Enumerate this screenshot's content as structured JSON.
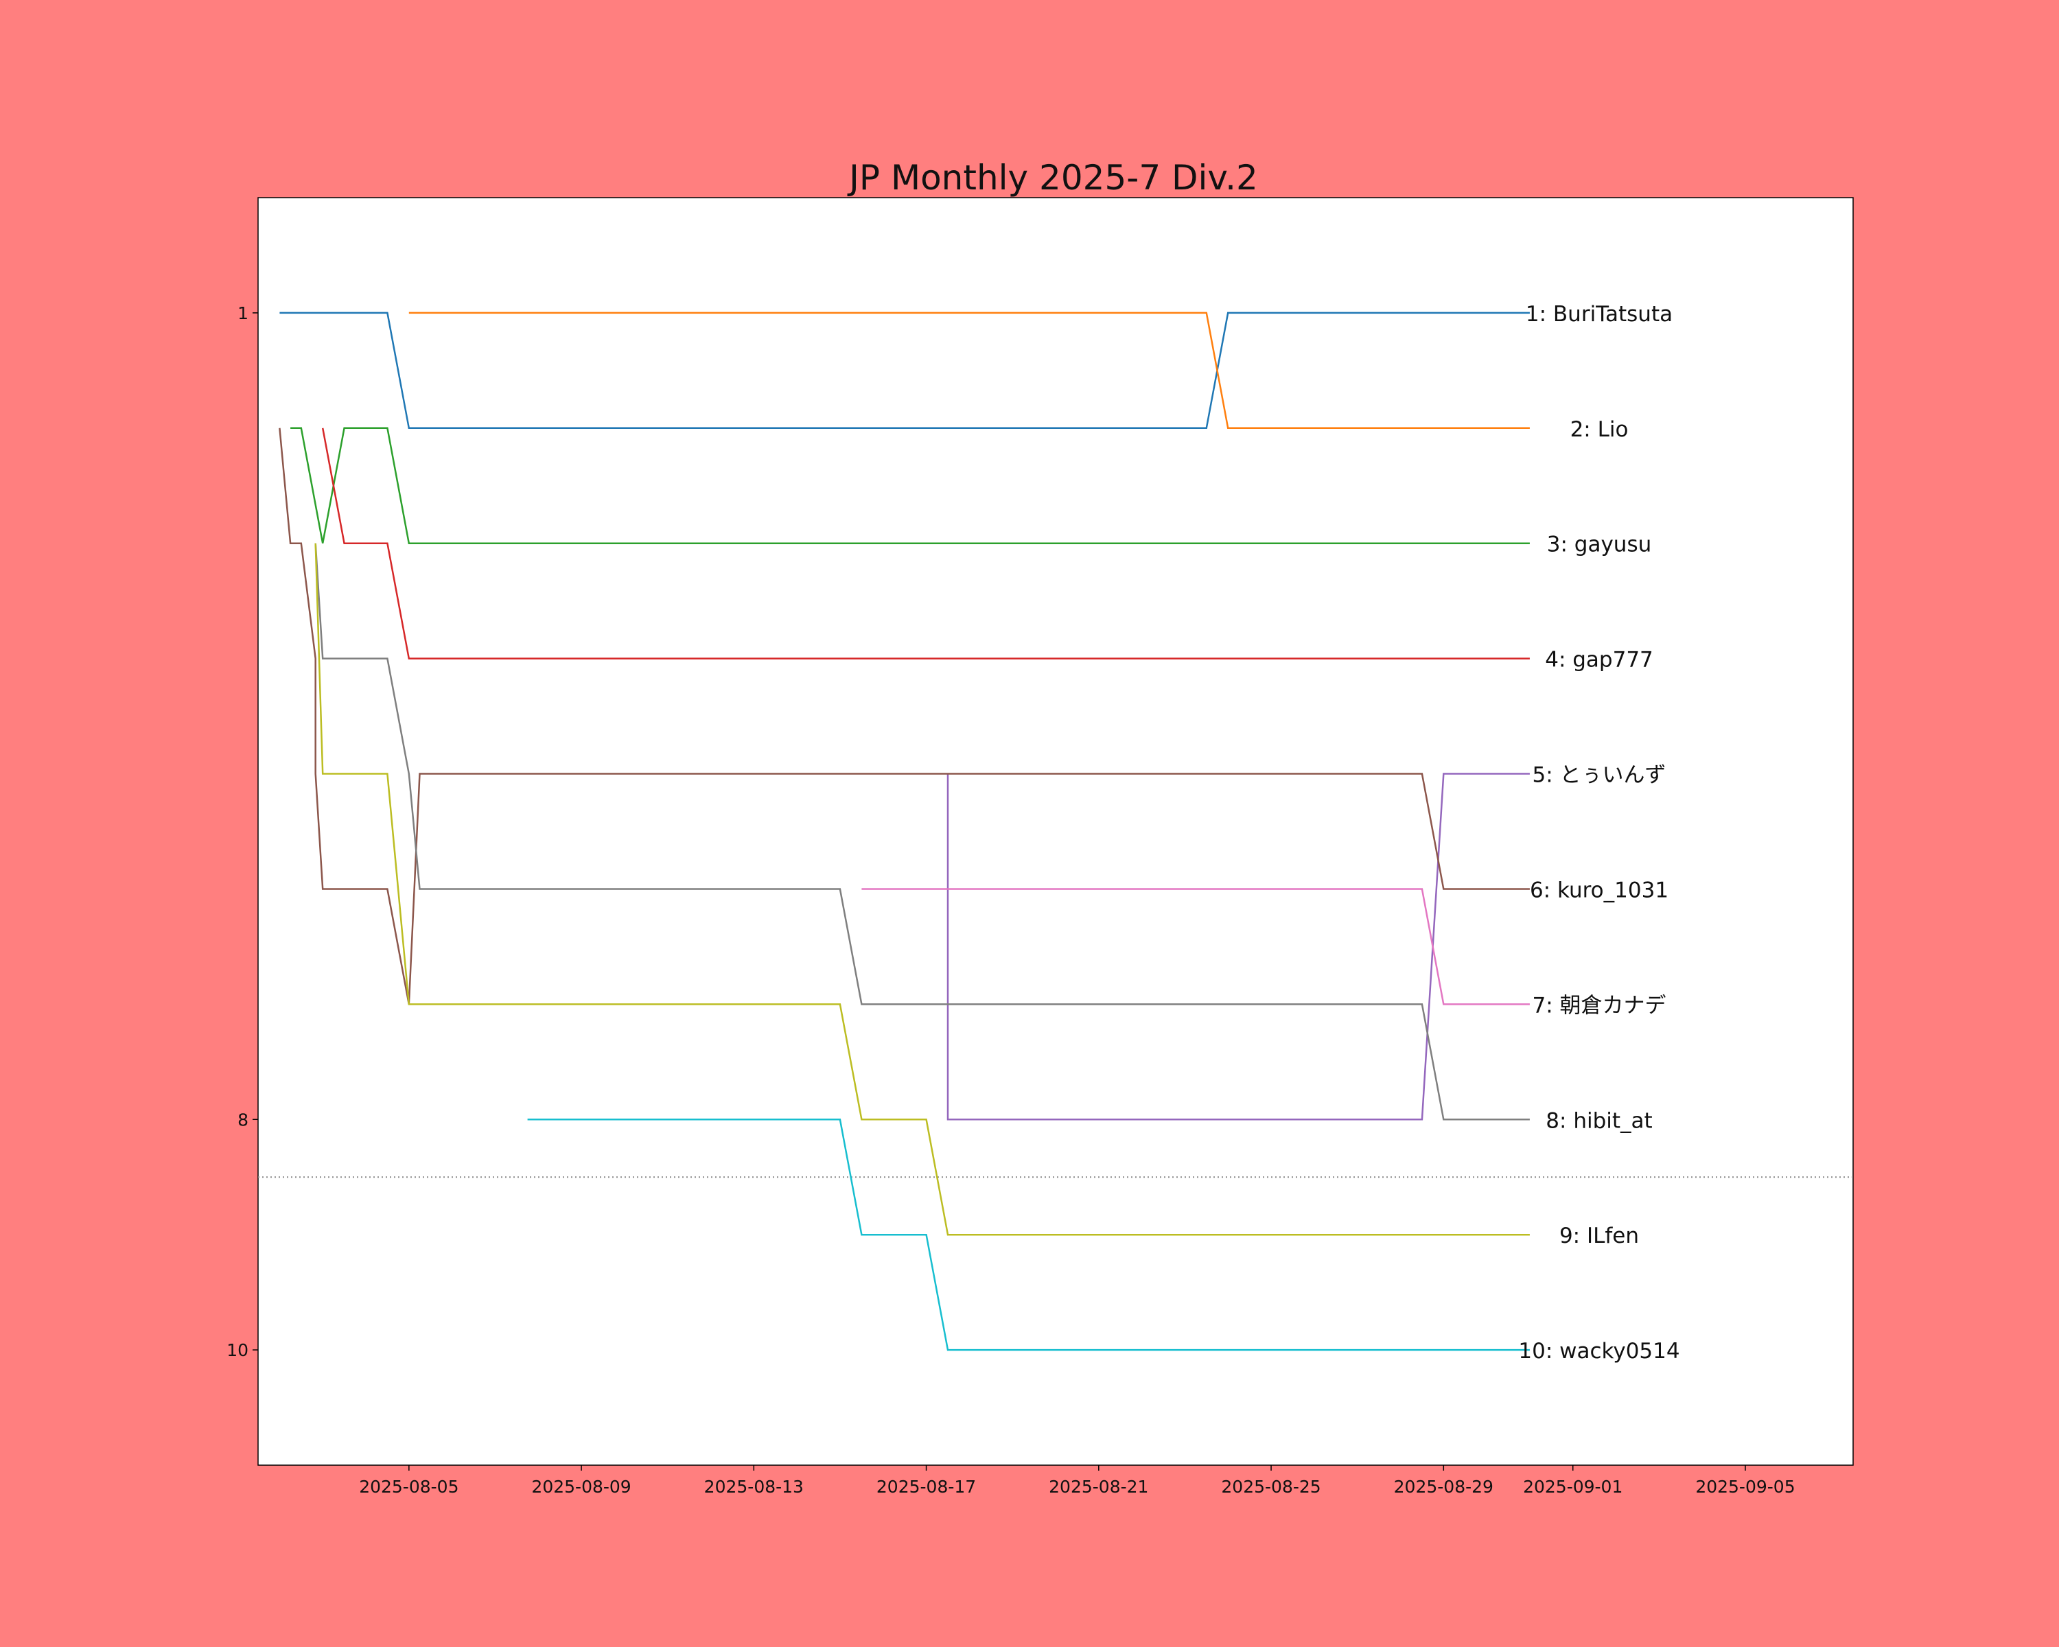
{
  "colors": {
    "background": "#ff7f7f",
    "plot": "#ffffff"
  },
  "chart_data": {
    "type": "line",
    "title": "JP Monthly 2025-7 Div.2",
    "xlabel": "",
    "ylabel": "",
    "x_ticks": [
      "2025-08-05",
      "2025-08-09",
      "2025-08-13",
      "2025-08-17",
      "2025-08-21",
      "2025-08-25",
      "2025-08-29",
      "2025-09-01",
      "2025-09-05"
    ],
    "y_ticks": [
      1,
      8,
      10
    ],
    "xlim": [
      "2025-08-01 12:00",
      "2025-09-07 12:00"
    ],
    "ylim": [
      11,
      0
    ],
    "cutoff_line": 8.5,
    "grid": false,
    "legend": "none (names labelled at line ends)",
    "series": [
      {
        "name": "1: BuriTatsuta",
        "color": "#1f77b4",
        "points": [
          [
            "2025-08-02 00:00",
            1
          ],
          [
            "2025-08-04 12:00",
            1
          ],
          [
            "2025-08-05 00:00",
            2
          ],
          [
            "2025-08-23 12:00",
            2
          ],
          [
            "2025-08-24 00:00",
            1
          ],
          [
            "2025-08-31 00:00",
            1
          ]
        ]
      },
      {
        "name": "2: Lio",
        "color": "#ff7f0e",
        "points": [
          [
            "2025-08-05 00:00",
            1
          ],
          [
            "2025-08-23 12:00",
            1
          ],
          [
            "2025-08-24 00:00",
            2
          ],
          [
            "2025-08-31 00:00",
            2
          ]
        ]
      },
      {
        "name": "3: gayusu",
        "color": "#2ca02c",
        "points": [
          [
            "2025-08-02 06:00",
            2
          ],
          [
            "2025-08-02 12:00",
            2
          ],
          [
            "2025-08-03 00:00",
            3
          ],
          [
            "2025-08-03 12:00",
            2
          ],
          [
            "2025-08-04 12:00",
            2
          ],
          [
            "2025-08-05 00:00",
            3
          ],
          [
            "2025-08-31 00:00",
            3
          ]
        ]
      },
      {
        "name": "4: gap777",
        "color": "#d62728",
        "points": [
          [
            "2025-08-03 00:00",
            2
          ],
          [
            "2025-08-03 12:00",
            3
          ],
          [
            "2025-08-04 12:00",
            3
          ],
          [
            "2025-08-05 00:00",
            4
          ],
          [
            "2025-08-31 00:00",
            4
          ]
        ]
      },
      {
        "name": "5: とぅいんず",
        "color": "#9467bd",
        "points": [
          [
            "2025-08-17 12:00",
            5
          ],
          [
            "2025-08-17 12:00",
            8
          ],
          [
            "2025-08-28 12:00",
            8
          ],
          [
            "2025-08-29 00:00",
            5
          ],
          [
            "2025-08-31 00:00",
            5
          ]
        ]
      },
      {
        "name": "6: kuro_1031",
        "color": "#8c564b",
        "points": [
          [
            "2025-08-02 00:00",
            2
          ],
          [
            "2025-08-02 06:00",
            3
          ],
          [
            "2025-08-02 12:00",
            3
          ],
          [
            "2025-08-02 20:00",
            4
          ],
          [
            "2025-08-02 20:00",
            5
          ],
          [
            "2025-08-03 00:00",
            6
          ],
          [
            "2025-08-04 12:00",
            6
          ],
          [
            "2025-08-05 00:00",
            7
          ],
          [
            "2025-08-05 06:00",
            5
          ],
          [
            "2025-08-28 12:00",
            5
          ],
          [
            "2025-08-29 00:00",
            6
          ],
          [
            "2025-08-31 00:00",
            6
          ]
        ]
      },
      {
        "name": "7: 朝倉カナデ",
        "color": "#e377c2",
        "points": [
          [
            "2025-08-15 12:00",
            6
          ],
          [
            "2025-08-28 12:00",
            6
          ],
          [
            "2025-08-29 00:00",
            7
          ],
          [
            "2025-08-31 00:00",
            7
          ]
        ]
      },
      {
        "name": "8: hibit_at",
        "color": "#7f7f7f",
        "points": [
          [
            "2025-08-02 20:00",
            3
          ],
          [
            "2025-08-03 00:00",
            4
          ],
          [
            "2025-08-04 12:00",
            4
          ],
          [
            "2025-08-05 00:00",
            5
          ],
          [
            "2025-08-05 06:00",
            6
          ],
          [
            "2025-08-15 00:00",
            6
          ],
          [
            "2025-08-15 12:00",
            7
          ],
          [
            "2025-08-28 12:00",
            7
          ],
          [
            "2025-08-29 00:00",
            8
          ],
          [
            "2025-08-31 00:00",
            8
          ]
        ]
      },
      {
        "name": "9: ILfen",
        "color": "#bcbd22",
        "points": [
          [
            "2025-08-02 20:00",
            3
          ],
          [
            "2025-08-03 00:00",
            5
          ],
          [
            "2025-08-04 12:00",
            5
          ],
          [
            "2025-08-05 00:00",
            7
          ],
          [
            "2025-08-15 00:00",
            7
          ],
          [
            "2025-08-15 12:00",
            8
          ],
          [
            "2025-08-17 00:00",
            8
          ],
          [
            "2025-08-17 12:00",
            9
          ],
          [
            "2025-08-31 00:00",
            9
          ]
        ]
      },
      {
        "name": "10: wacky0514",
        "color": "#17becf",
        "points": [
          [
            "2025-08-07 18:00",
            8
          ],
          [
            "2025-08-15 00:00",
            8
          ],
          [
            "2025-08-15 12:00",
            9
          ],
          [
            "2025-08-17 00:00",
            9
          ],
          [
            "2025-08-17 12:00",
            10
          ],
          [
            "2025-08-31 00:00",
            10
          ]
        ]
      }
    ]
  }
}
